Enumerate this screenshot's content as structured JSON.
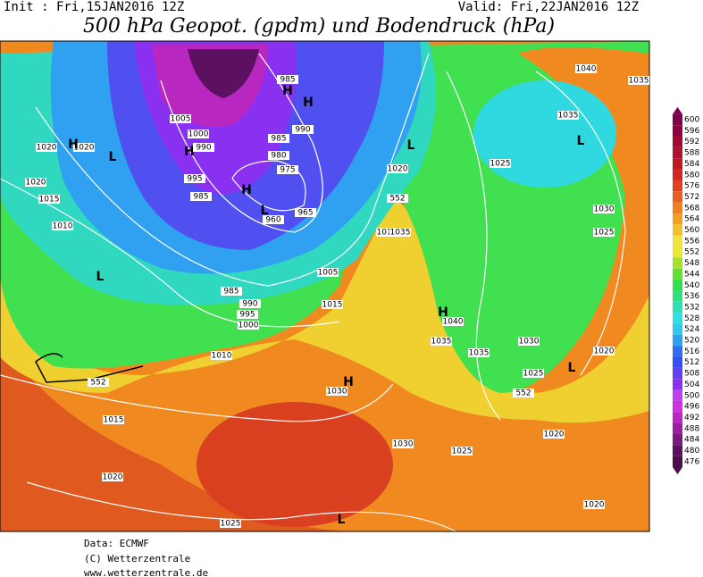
{
  "header": {
    "init": "Init : Fri,15JAN2016 12Z",
    "valid": "Valid: Fri,22JAN2016 12Z",
    "title": "500 hPa Geopot. (gpdm) und Bodendruck (hPa)"
  },
  "colorbar": {
    "levels": [
      "600",
      "596",
      "592",
      "588",
      "584",
      "580",
      "576",
      "572",
      "568",
      "564",
      "560",
      "556",
      "552",
      "548",
      "544",
      "540",
      "536",
      "532",
      "528",
      "524",
      "520",
      "516",
      "512",
      "508",
      "504",
      "500",
      "496",
      "492",
      "488",
      "484",
      "480",
      "476"
    ],
    "colors": [
      "#800050",
      "#900040",
      "#a00830",
      "#b01030",
      "#c01820",
      "#d02820",
      "#e04020",
      "#e86020",
      "#f08020",
      "#f0a020",
      "#f0c030",
      "#f0e040",
      "#e8e830",
      "#a8e030",
      "#60e030",
      "#30e050",
      "#30e080",
      "#30e0b0",
      "#30e0e0",
      "#30c8f0",
      "#30a0f0",
      "#3070f0",
      "#3050f0",
      "#6040f0",
      "#8a30f0",
      "#c040f0",
      "#d030e0",
      "#b828c0",
      "#9a20a0",
      "#7a1a80",
      "#5c1060",
      "#4b0e4b"
    ]
  },
  "map": {
    "labels": [
      "1040",
      "1035",
      "L",
      "1035",
      "1025",
      "L",
      "1030",
      "1025",
      "1020",
      "1020",
      "H",
      "L",
      "1020",
      "1015",
      "1010",
      "L",
      "1005",
      "1000",
      "H",
      "990",
      "995",
      "985",
      "985",
      "980",
      "975",
      "965",
      "960",
      "H",
      "L",
      "990",
      "H",
      "H",
      "985",
      "1020",
      "552",
      "1010",
      "1035",
      "1005",
      "1015",
      "985",
      "990",
      "995",
      "1000",
      "1010",
      "552",
      "1015",
      "1020",
      "1030",
      "H",
      "H",
      "1040",
      "1035",
      "1035",
      "1030",
      "1025",
      "1020",
      "552",
      "L",
      "1020",
      "1030",
      "1025",
      "1020",
      "1025",
      "L"
    ]
  },
  "footer": {
    "lines": [
      "Data: ECMWF",
      "(C) Wetterzentrale",
      "www.wetterzentrale.de"
    ]
  }
}
